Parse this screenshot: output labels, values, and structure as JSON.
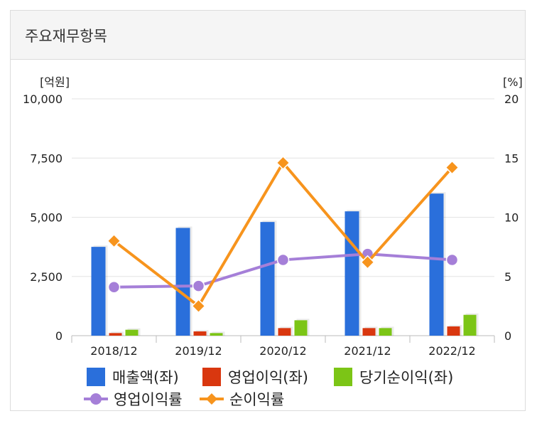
{
  "panel": {
    "title": "주요재무항목"
  },
  "chart_data": {
    "type": "bar",
    "categories": [
      "2018/12",
      "2019/12",
      "2020/12",
      "2021/12",
      "2022/12"
    ],
    "y_left": {
      "unit": "[억원]",
      "ylim": [
        0,
        10000
      ],
      "ticks": [
        "0",
        "2,500",
        "5,000",
        "7,500",
        "10,000"
      ],
      "tick_values": [
        0,
        2500,
        5000,
        7500,
        10000
      ]
    },
    "y_right": {
      "unit": "[%]",
      "ylim": [
        0,
        20
      ],
      "ticks": [
        "0",
        "5",
        "10",
        "15",
        "20"
      ],
      "tick_values": [
        0,
        5,
        10,
        15,
        20
      ]
    },
    "grid": true,
    "legend_position": "bottom",
    "bar_series": [
      {
        "name": "매출액(좌)",
        "color": "#2a6fdb",
        "values": [
          3750,
          4550,
          4800,
          5250,
          6000
        ]
      },
      {
        "name": "영업이익(좌)",
        "color": "#d9370f",
        "values": [
          110,
          180,
          320,
          320,
          390
        ]
      },
      {
        "name": "당기순이익(좌)",
        "color": "#7cc516",
        "values": [
          250,
          110,
          650,
          320,
          880
        ]
      }
    ],
    "line_series": [
      {
        "name": "영업이익률",
        "color": "#a57fd8",
        "marker": "circle",
        "values": [
          4.1,
          4.2,
          6.4,
          6.9,
          6.4
        ]
      },
      {
        "name": "순이익률",
        "color": "#f7941d",
        "marker": "diamond",
        "values": [
          8.0,
          2.5,
          14.6,
          6.2,
          14.2
        ]
      }
    ]
  }
}
